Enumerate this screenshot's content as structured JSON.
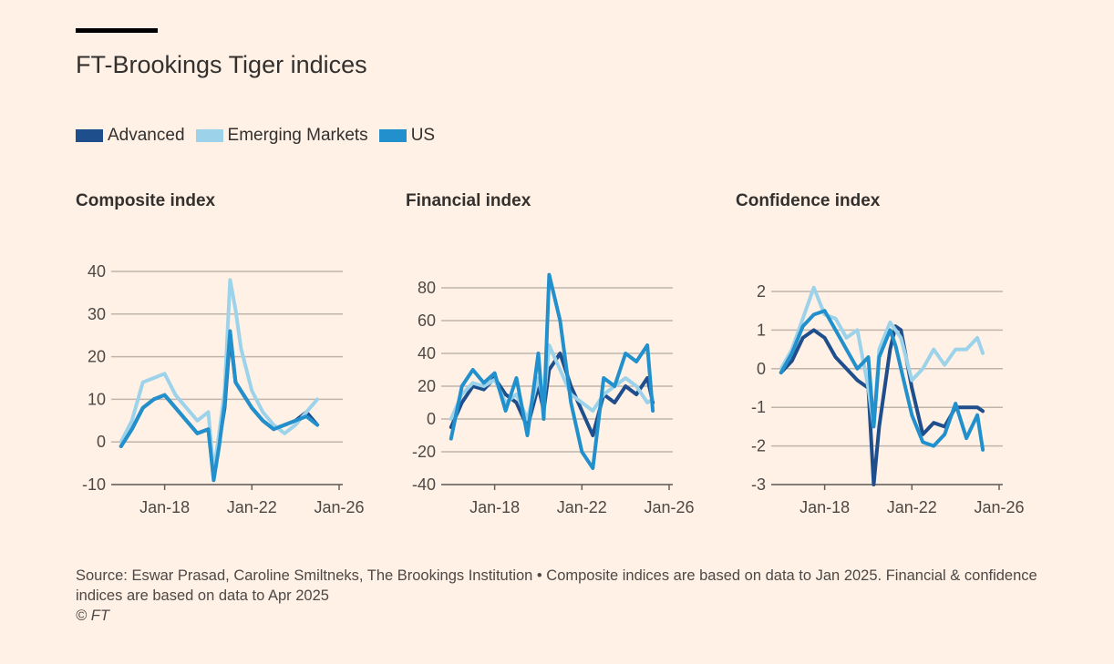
{
  "title": "FT-Brookings Tiger indices",
  "legend": [
    {
      "label": "Advanced",
      "color": "#1f4e8c"
    },
    {
      "label": "Emerging Markets",
      "color": "#9dd3ea"
    },
    {
      "label": "US",
      "color": "#2190cc"
    }
  ],
  "footer": {
    "source": "Source: Eswar Prasad, Caroline Smiltneks, The Brookings Institution • Composite indices are based on data to Jan 2025. Financial & confidence indices are based on data to Apr 2025",
    "credit": "© FT"
  },
  "chart_data": [
    {
      "type": "line",
      "title": "Composite index",
      "xlim": [
        "Jan-16",
        "Jan-26"
      ],
      "xticks": [
        "Jan-18",
        "Jan-22",
        "Jan-26"
      ],
      "yticks": [
        -10,
        0,
        10,
        20,
        30,
        40
      ],
      "ylim": [
        -10,
        40
      ],
      "x_dates": [
        "Jan-16",
        "Jul-16",
        "Jan-17",
        "Jul-17",
        "Jan-18",
        "Jul-18",
        "Jan-19",
        "Jul-19",
        "Jan-20",
        "Apr-20",
        "Jul-20",
        "Oct-20",
        "Jan-21",
        "Apr-21",
        "Jul-21",
        "Jan-22",
        "Jul-22",
        "Jan-23",
        "Jul-23",
        "Jan-24",
        "Jul-24",
        "Jan-25"
      ],
      "series": [
        {
          "name": "Advanced",
          "values": [
            -1,
            3,
            8,
            10,
            11,
            8,
            5,
            2,
            3,
            -8,
            0,
            8,
            25,
            14,
            12,
            8,
            5,
            3,
            4,
            5,
            7,
            4
          ]
        },
        {
          "name": "Emerging Markets",
          "values": [
            0,
            5,
            14,
            15,
            16,
            11,
            8,
            5,
            7,
            -7,
            2,
            12,
            38,
            31,
            22,
            12,
            7,
            4,
            2,
            4,
            7,
            10
          ]
        },
        {
          "name": "US",
          "values": [
            -1,
            3,
            8,
            10,
            11,
            8,
            5,
            2,
            3,
            -9,
            -1,
            9,
            26,
            14,
            12,
            8,
            5,
            3,
            4,
            5,
            6,
            4
          ]
        }
      ]
    },
    {
      "type": "line",
      "title": "Financial index",
      "xlim": [
        "Jan-16",
        "Jan-26"
      ],
      "xticks": [
        "Jan-18",
        "Jan-22",
        "Jan-26"
      ],
      "yticks": [
        -40,
        -20,
        0,
        20,
        40,
        60,
        80
      ],
      "ylim": [
        -40,
        80
      ],
      "x_dates": [
        "Jan-16",
        "Jul-16",
        "Jan-17",
        "Jul-17",
        "Jan-18",
        "Jul-18",
        "Jan-19",
        "Jul-19",
        "Jan-20",
        "Apr-20",
        "Jul-20",
        "Jan-21",
        "Jul-21",
        "Jan-22",
        "Jul-22",
        "Jan-23",
        "Jul-23",
        "Jan-24",
        "Jul-24",
        "Jan-25",
        "Apr-25"
      ],
      "series": [
        {
          "name": "Advanced",
          "values": [
            -5,
            10,
            20,
            18,
            25,
            15,
            10,
            -5,
            20,
            5,
            30,
            40,
            20,
            5,
            -10,
            15,
            10,
            20,
            15,
            25,
            10
          ]
        },
        {
          "name": "Emerging Markets",
          "values": [
            0,
            15,
            22,
            20,
            24,
            10,
            15,
            0,
            25,
            10,
            45,
            30,
            15,
            10,
            5,
            15,
            20,
            25,
            20,
            10,
            12
          ]
        },
        {
          "name": "US",
          "values": [
            -12,
            20,
            30,
            22,
            28,
            5,
            25,
            -10,
            40,
            0,
            88,
            60,
            10,
            -20,
            -30,
            25,
            20,
            40,
            35,
            45,
            5
          ]
        }
      ]
    },
    {
      "type": "line",
      "title": "Confidence index",
      "xlim": [
        "Jan-16",
        "Jan-26"
      ],
      "xticks": [
        "Jan-18",
        "Jan-22",
        "Jan-26"
      ],
      "yticks": [
        -3,
        -2,
        -1,
        0,
        1,
        2
      ],
      "ylim": [
        -3,
        2
      ],
      "x_dates": [
        "Jan-16",
        "Jul-16",
        "Jan-17",
        "Jul-17",
        "Jan-18",
        "Jul-18",
        "Jan-19",
        "Jul-19",
        "Jan-20",
        "Apr-20",
        "Jul-20",
        "Jan-21",
        "Apr-21",
        "Jul-21",
        "Jan-22",
        "Jul-22",
        "Jan-23",
        "Jul-23",
        "Jan-24",
        "Jul-24",
        "Jan-25",
        "Apr-25"
      ],
      "series": [
        {
          "name": "Advanced",
          "values": [
            -0.1,
            0.2,
            0.8,
            1.0,
            0.8,
            0.3,
            0.0,
            -0.3,
            -0.5,
            -3.0,
            -1.5,
            0.5,
            1.1,
            1.0,
            -0.5,
            -1.7,
            -1.4,
            -1.5,
            -1.0,
            -1.0,
            -1.0,
            -1.1
          ]
        },
        {
          "name": "Emerging Markets",
          "values": [
            0.0,
            0.5,
            1.3,
            2.1,
            1.4,
            1.3,
            0.8,
            1.0,
            -0.5,
            -1.5,
            0.5,
            1.2,
            1.0,
            0.8,
            -0.3,
            0.0,
            0.5,
            0.1,
            0.5,
            0.5,
            0.8,
            0.4
          ]
        },
        {
          "name": "US",
          "values": [
            -0.1,
            0.4,
            1.1,
            1.4,
            1.5,
            1.0,
            0.5,
            0.0,
            0.3,
            -1.5,
            0.3,
            1.0,
            0.6,
            0.0,
            -1.2,
            -1.9,
            -2.0,
            -1.7,
            -0.9,
            -1.8,
            -1.2,
            -2.1
          ]
        }
      ]
    }
  ]
}
